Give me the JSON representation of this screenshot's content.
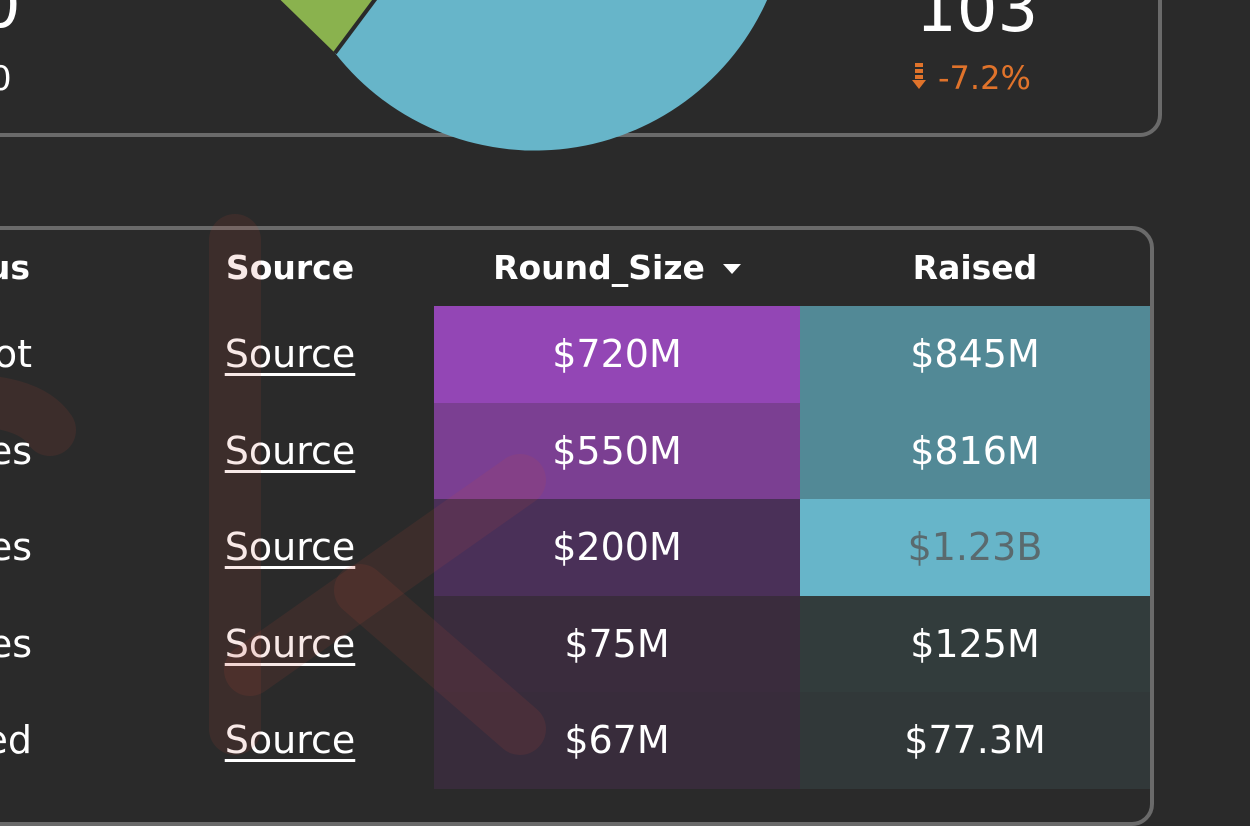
{
  "kpi": {
    "left_value": "0",
    "left_sub": "0",
    "value": "103",
    "change": "-7.2%",
    "change_icon": "arrow-down-icon",
    "change_color": "#e0732b"
  },
  "pie": {
    "slice_colors": [
      "#67b5c9",
      "#8ab24e"
    ]
  },
  "table": {
    "columns": {
      "status": "us",
      "source": "Source",
      "round_size": "Round_Size",
      "raised": "Raised"
    },
    "rows": [
      {
        "status": "ot",
        "source": "Source",
        "round_size": "$720M",
        "raised": "$845M",
        "round_bg": "#9346b5",
        "raised_bg": "#528996",
        "raised_color": "#ffffff"
      },
      {
        "status": "es",
        "source": "Source",
        "round_size": "$550M",
        "raised": "$816M",
        "round_bg": "#7b3f92",
        "raised_bg": "#528996",
        "raised_color": "#ffffff"
      },
      {
        "status": "es",
        "source": "Source",
        "round_size": "$200M",
        "raised": "$1.23B",
        "round_bg": "#4a3058",
        "raised_bg": "#67b5c9",
        "raised_color": "#5a6a6e"
      },
      {
        "status": "es",
        "source": "Source",
        "round_size": "$75M",
        "raised": "$125M",
        "round_bg": "#3a2c3d",
        "raised_bg": "#323c3c",
        "raised_color": "#ffffff"
      },
      {
        "status": "ed",
        "source": "Source",
        "round_size": "$67M",
        "raised": "$77.3M",
        "round_bg": "#382c3b",
        "raised_bg": "#313839",
        "raised_color": "#ffffff"
      }
    ]
  }
}
